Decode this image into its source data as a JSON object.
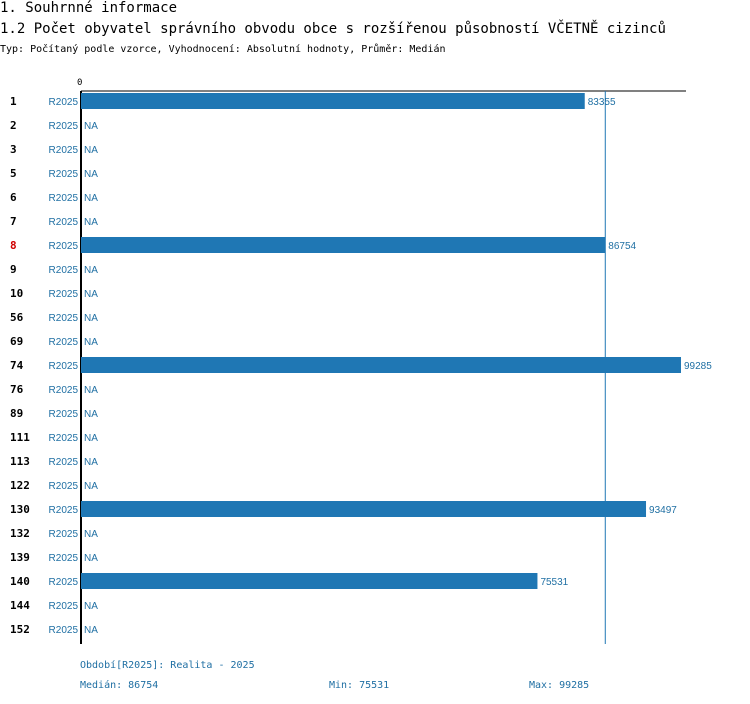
{
  "header": {
    "section_title": "1. Souhrnné informace",
    "chart_title": "1.2 Počet obyvatel správního obvodu obce s rozšířenou působností VČETNĚ cizinců",
    "subtitle": "Typ: Počítaný podle vzorce, Vyhodnocení: Absolutní hodnoty, Průměr: Medián"
  },
  "colors": {
    "bar": "#1f77b4",
    "text_blue": "#1f6fa3",
    "highlight": "#d00000",
    "axis": "#000000"
  },
  "chart_data": {
    "type": "bar",
    "orientation": "horizontal",
    "x_tick_label": "0",
    "series_label": "R2025",
    "na_label": "NA",
    "highlight_category": "8",
    "categories": [
      "1",
      "2",
      "3",
      "5",
      "6",
      "7",
      "8",
      "9",
      "10",
      "56",
      "69",
      "74",
      "76",
      "89",
      "111",
      "113",
      "122",
      "130",
      "132",
      "139",
      "140",
      "144",
      "152"
    ],
    "values": [
      83355,
      null,
      null,
      null,
      null,
      null,
      86754,
      null,
      null,
      null,
      null,
      99285,
      null,
      null,
      null,
      null,
      null,
      93497,
      null,
      null,
      75531,
      null,
      null
    ],
    "value_labels": [
      "83355",
      "NA",
      "NA",
      "NA",
      "NA",
      "NA",
      "86754",
      "NA",
      "NA",
      "NA",
      "NA",
      "99285",
      "NA",
      "NA",
      "NA",
      "NA",
      "NA",
      "93497",
      "NA",
      "NA",
      "75531",
      "NA",
      "NA"
    ],
    "xlim": [
      0,
      99285
    ],
    "median_line": 86754
  },
  "footer": {
    "period": "Období[R2025]: Realita - 2025",
    "median": "Medián: 86754",
    "min": "Min: 75531",
    "max": "Max: 99285"
  }
}
